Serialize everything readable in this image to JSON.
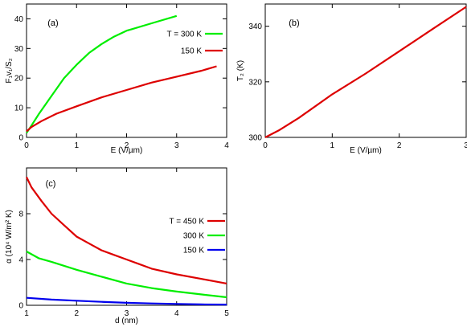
{
  "chart_data": [
    {
      "panel": "(a)",
      "type": "line",
      "xlabel": "E (V/µm)",
      "ylabel": "F₁v₁/S₂",
      "xlim": [
        0,
        4
      ],
      "ylim": [
        0,
        45
      ],
      "xticks": [
        0,
        1,
        2,
        3,
        4
      ],
      "yticks": [
        0,
        10,
        20,
        30,
        40
      ],
      "legend_position": "right",
      "series": [
        {
          "name": "T = 300 K",
          "color": "#00ee00",
          "x": [
            0,
            0.1,
            0.25,
            0.5,
            0.75,
            1.0,
            1.25,
            1.5,
            1.75,
            2.0,
            2.1,
            2.5,
            3.0
          ],
          "y": [
            1.5,
            4,
            8,
            14,
            20,
            24.5,
            28.5,
            31.5,
            34,
            36,
            36.5,
            38.5,
            41
          ]
        },
        {
          "name": "150 K",
          "color": "#dd0000",
          "x": [
            0,
            0.1,
            0.3,
            0.6,
            1.0,
            1.5,
            2.0,
            2.5,
            3.0,
            3.5,
            3.8
          ],
          "y": [
            2,
            3.5,
            5.5,
            8,
            10.5,
            13.5,
            16,
            18.5,
            20.5,
            22.5,
            24
          ]
        }
      ]
    },
    {
      "panel": "(b)",
      "type": "line",
      "xlabel": "E (V/µm)",
      "ylabel": "T₂ (K)",
      "xlim": [
        0,
        3
      ],
      "ylim": [
        300,
        348
      ],
      "xticks": [
        0,
        1,
        2,
        3
      ],
      "yticks": [
        300,
        320,
        340
      ],
      "series": [
        {
          "color": "#dd0000",
          "x": [
            0,
            0.2,
            0.5,
            1.0,
            1.5,
            2.0,
            2.5,
            3.0
          ],
          "y": [
            300,
            302.5,
            307,
            315.5,
            323,
            331,
            339,
            347
          ]
        }
      ]
    },
    {
      "panel": "(c)",
      "type": "line",
      "xlabel": "d (nm)",
      "ylabel": "α (10⁴ W/m² K)",
      "xlim": [
        1,
        5
      ],
      "ylim": [
        0,
        12
      ],
      "xticks": [
        1,
        2,
        3,
        4,
        5
      ],
      "yticks": [
        0,
        4,
        8
      ],
      "legend_position": "right",
      "series": [
        {
          "name": "T = 450 K",
          "color": "#dd0000",
          "x": [
            1.0,
            1.1,
            1.3,
            1.5,
            1.75,
            2.0,
            2.25,
            2.5,
            2.75,
            3.0,
            3.25,
            3.5,
            4.0,
            4.5,
            5.0
          ],
          "y": [
            11.2,
            10.3,
            9.1,
            8.0,
            7.0,
            6.0,
            5.4,
            4.8,
            4.4,
            4.0,
            3.6,
            3.2,
            2.7,
            2.3,
            1.9
          ]
        },
        {
          "name": "300 K",
          "color": "#00ee00",
          "x": [
            1.0,
            1.25,
            1.5,
            2.0,
            2.5,
            3.0,
            3.5,
            4.0,
            4.5,
            5.0
          ],
          "y": [
            4.7,
            4.1,
            3.8,
            3.1,
            2.5,
            1.9,
            1.5,
            1.2,
            0.95,
            0.7
          ]
        },
        {
          "name": "150 K",
          "color": "#0000ee",
          "x": [
            1.0,
            1.5,
            2.0,
            2.5,
            3.0,
            3.5,
            4.0,
            4.5,
            5.0
          ],
          "y": [
            0.65,
            0.5,
            0.4,
            0.3,
            0.22,
            0.16,
            0.12,
            0.08,
            0.06
          ]
        }
      ]
    }
  ]
}
